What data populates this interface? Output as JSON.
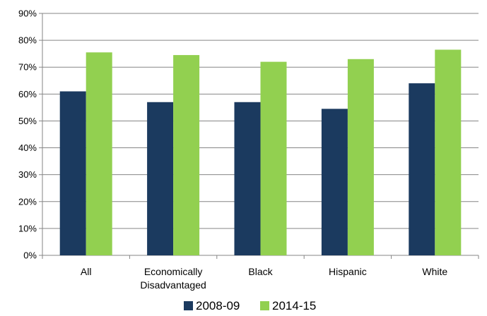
{
  "chart_data": {
    "type": "bar",
    "title": "",
    "xlabel": "",
    "ylabel": "",
    "ylim": [
      0,
      90
    ],
    "yticks": [
      0,
      10,
      20,
      30,
      40,
      50,
      60,
      70,
      80,
      90
    ],
    "ytick_labels": [
      "0%",
      "10%",
      "20%",
      "30%",
      "40%",
      "50%",
      "60%",
      "70%",
      "80%",
      "90%"
    ],
    "categories": [
      "All",
      "Economically Disadvantaged",
      "Black",
      "Hispanic",
      "White"
    ],
    "category_lines": [
      [
        "All"
      ],
      [
        "Economically",
        "Disadvantaged"
      ],
      [
        "Black"
      ],
      [
        "Hispanic"
      ],
      [
        "White"
      ]
    ],
    "series": [
      {
        "name": "2008-09",
        "color": "#1b3a5f",
        "values": [
          61,
          57,
          57,
          54.5,
          64
        ]
      },
      {
        "name": "2014-15",
        "color": "#92d050",
        "values": [
          75.5,
          74.5,
          72,
          73,
          76.5
        ]
      }
    ],
    "grid": true,
    "legend": {
      "position": "bottom"
    }
  }
}
